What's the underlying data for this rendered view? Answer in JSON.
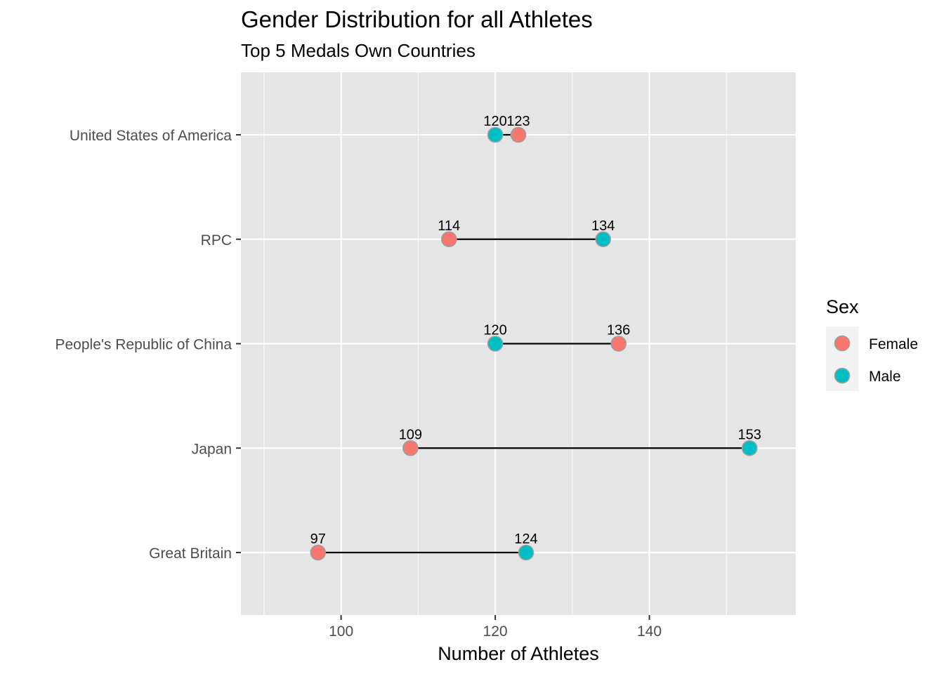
{
  "chart_data": {
    "type": "dumbbell",
    "title": "Gender Distribution for all Athletes",
    "subtitle": "Top 5 Medals Own Countries",
    "xlabel": "Number of Athletes",
    "ylabel": "",
    "xlim": [
      87,
      159
    ],
    "x_ticks": [
      100,
      120,
      140
    ],
    "x_minor_ticks": [
      90,
      110,
      130,
      150
    ],
    "grid": true,
    "categories": [
      "United States of America",
      "RPC",
      "People's Republic of China",
      "Japan",
      "Great Britain"
    ],
    "series": [
      {
        "name": "Female",
        "color": "#F8766D",
        "values": [
          123,
          114,
          136,
          109,
          97
        ],
        "labels": [
          "123",
          "114",
          "136",
          "109",
          "97"
        ]
      },
      {
        "name": "Male",
        "color": "#00BFC4",
        "values": [
          120,
          134,
          120,
          153,
          124
        ],
        "labels": [
          "120",
          "134",
          "120",
          "153",
          "124"
        ]
      }
    ],
    "legend": {
      "title": "Sex",
      "position": "right",
      "entries": [
        "Female",
        "Male"
      ]
    },
    "colors": {
      "panel_background": "#E5E5E5",
      "grid_line": "#FFFFFF",
      "segment": "#000000",
      "point_outline": "#9E9E9E",
      "legend_background": "#F2F2F2"
    }
  }
}
